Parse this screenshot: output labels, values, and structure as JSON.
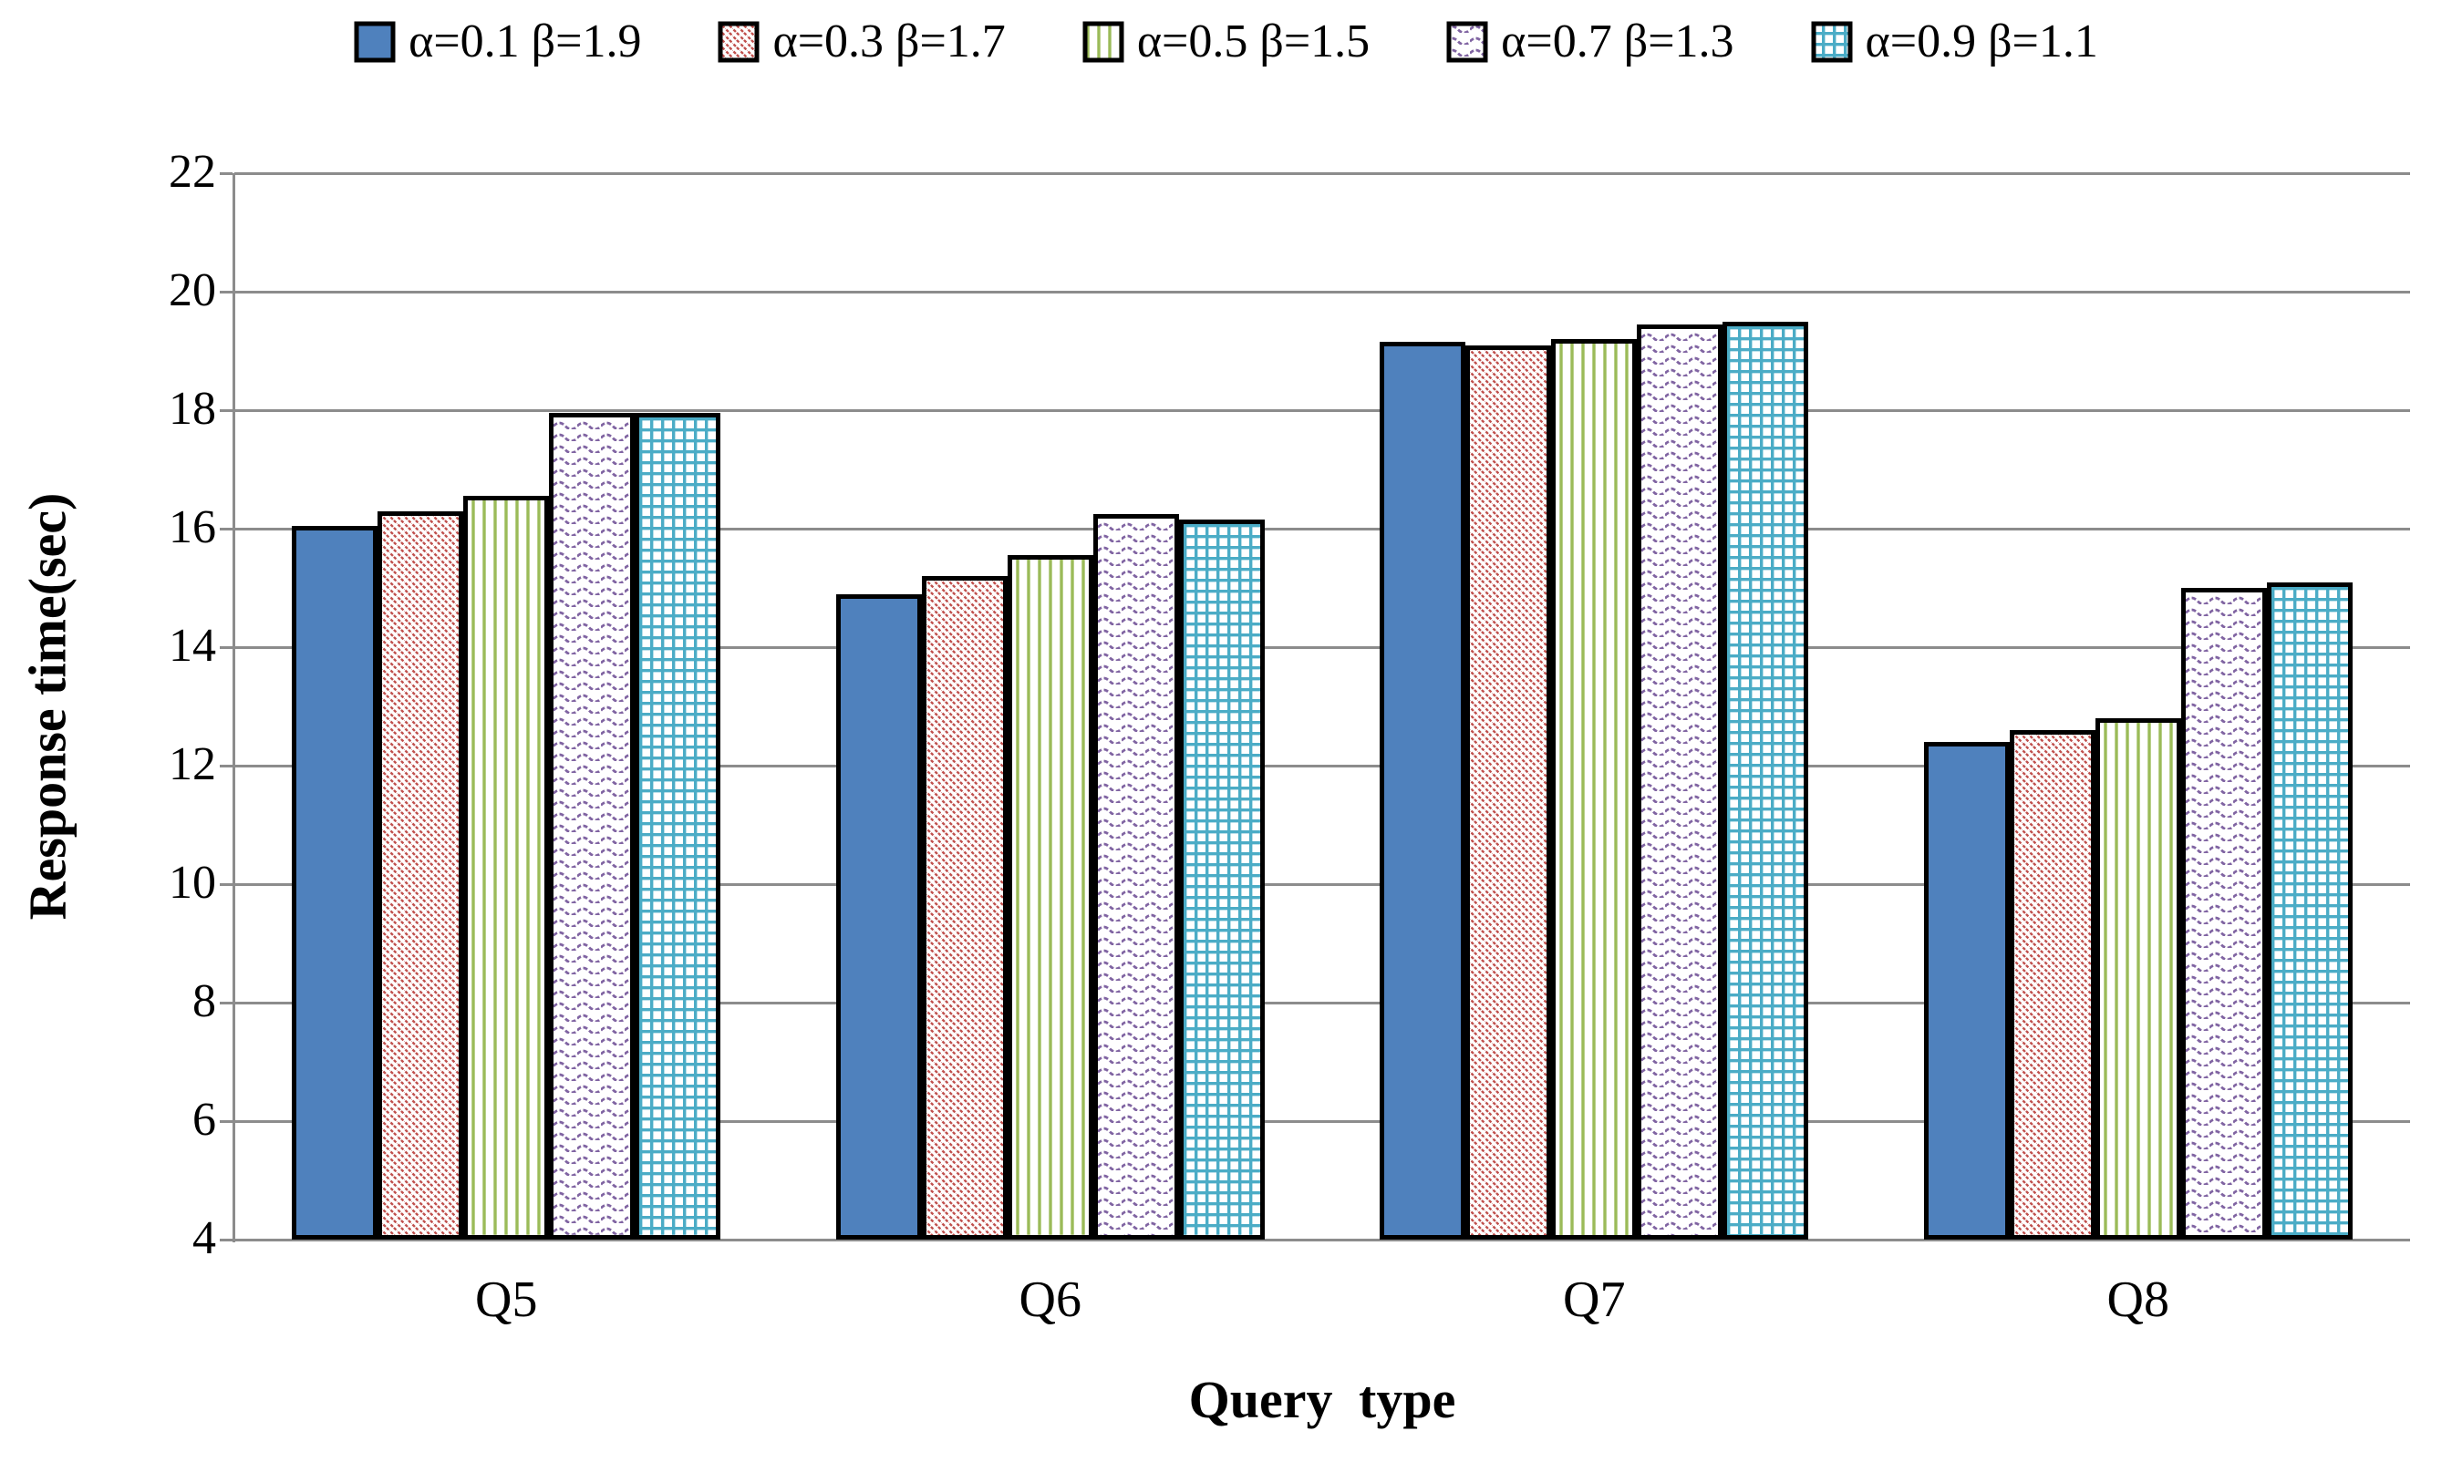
{
  "chart_data": {
    "type": "bar",
    "title": "",
    "xlabel": "Query type",
    "ylabel": "Response time(sec)",
    "categories": [
      "Q5",
      "Q6",
      "Q7",
      "Q8"
    ],
    "series": [
      {
        "name": "α=0.1 β=1.9",
        "pattern": "solid",
        "color": "#4F81BD",
        "values": [
          16.05,
          14.9,
          19.15,
          12.4
        ]
      },
      {
        "name": "α=0.3 β=1.7",
        "pattern": "diagonal-stripes",
        "color": "#C0504D",
        "values": [
          16.3,
          15.2,
          19.1,
          12.6
        ]
      },
      {
        "name": "α=0.5 β=1.5",
        "pattern": "vertical-stripes",
        "color": "#9BBB59",
        "values": [
          16.55,
          15.55,
          19.2,
          12.8
        ]
      },
      {
        "name": "α=0.7 β=1.3",
        "pattern": "horizontal-waves",
        "color": "#8064A2",
        "values": [
          17.95,
          16.25,
          19.45,
          15.0
        ]
      },
      {
        "name": "α=0.9 β=1.1",
        "pattern": "square-grid",
        "color": "#4BACC6",
        "values": [
          17.95,
          16.15,
          19.5,
          15.1
        ]
      }
    ],
    "ylim": [
      4,
      22
    ],
    "yticks": [
      22,
      20,
      18,
      16,
      14,
      12,
      10,
      8,
      6,
      4
    ],
    "grid": "horizontal",
    "legend_position": "top",
    "colors": {
      "gridline": "#8C8C8C",
      "axis_line": "#8C8C8C",
      "bar_border": "#000000",
      "background": "#FFFFFF",
      "text": "#000000"
    }
  }
}
